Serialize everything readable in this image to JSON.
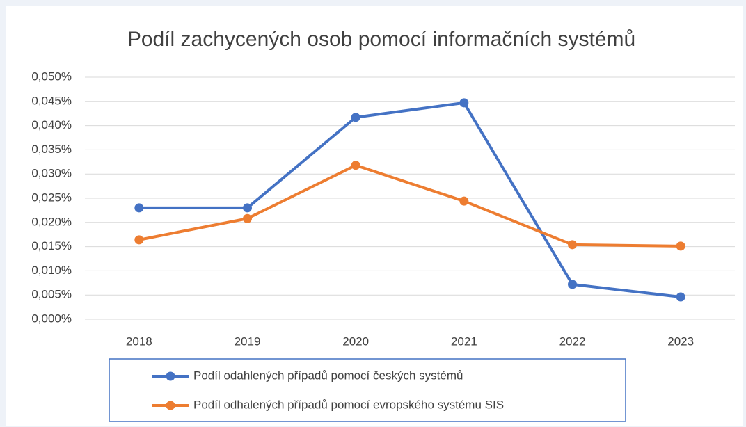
{
  "chart_data": {
    "type": "line",
    "title": "Podíl zachycených osob pomocí informačních systémů",
    "categories": [
      "2018",
      "2019",
      "2020",
      "2021",
      "2022",
      "2023"
    ],
    "series": [
      {
        "name": "Podíl odahlených případů pomocí českých systémů",
        "color": "#4472c4",
        "values": [
          0.023,
          0.023,
          0.0417,
          0.0447,
          0.0072,
          0.0046
        ]
      },
      {
        "name": "Podíl odhalených případů pomocí evropského systému SIS",
        "color": "#ed7d31",
        "values": [
          0.0164,
          0.0208,
          0.0318,
          0.0244,
          0.0154,
          0.0151
        ]
      }
    ],
    "ylim": [
      0,
      0.05
    ],
    "yticks": [
      {
        "value": 0,
        "label": "0,000%"
      },
      {
        "value": 0.005,
        "label": "0,005%"
      },
      {
        "value": 0.01,
        "label": "0,010%"
      },
      {
        "value": 0.015,
        "label": "0,015%"
      },
      {
        "value": 0.02,
        "label": "0,020%"
      },
      {
        "value": 0.025,
        "label": "0,025%"
      },
      {
        "value": 0.03,
        "label": "0,030%"
      },
      {
        "value": 0.035,
        "label": "0,035%"
      },
      {
        "value": 0.04,
        "label": "0,040%"
      },
      {
        "value": 0.045,
        "label": "0,045%"
      },
      {
        "value": 0.05,
        "label": "0,050%"
      }
    ],
    "grid": true,
    "legend": "bottom"
  }
}
